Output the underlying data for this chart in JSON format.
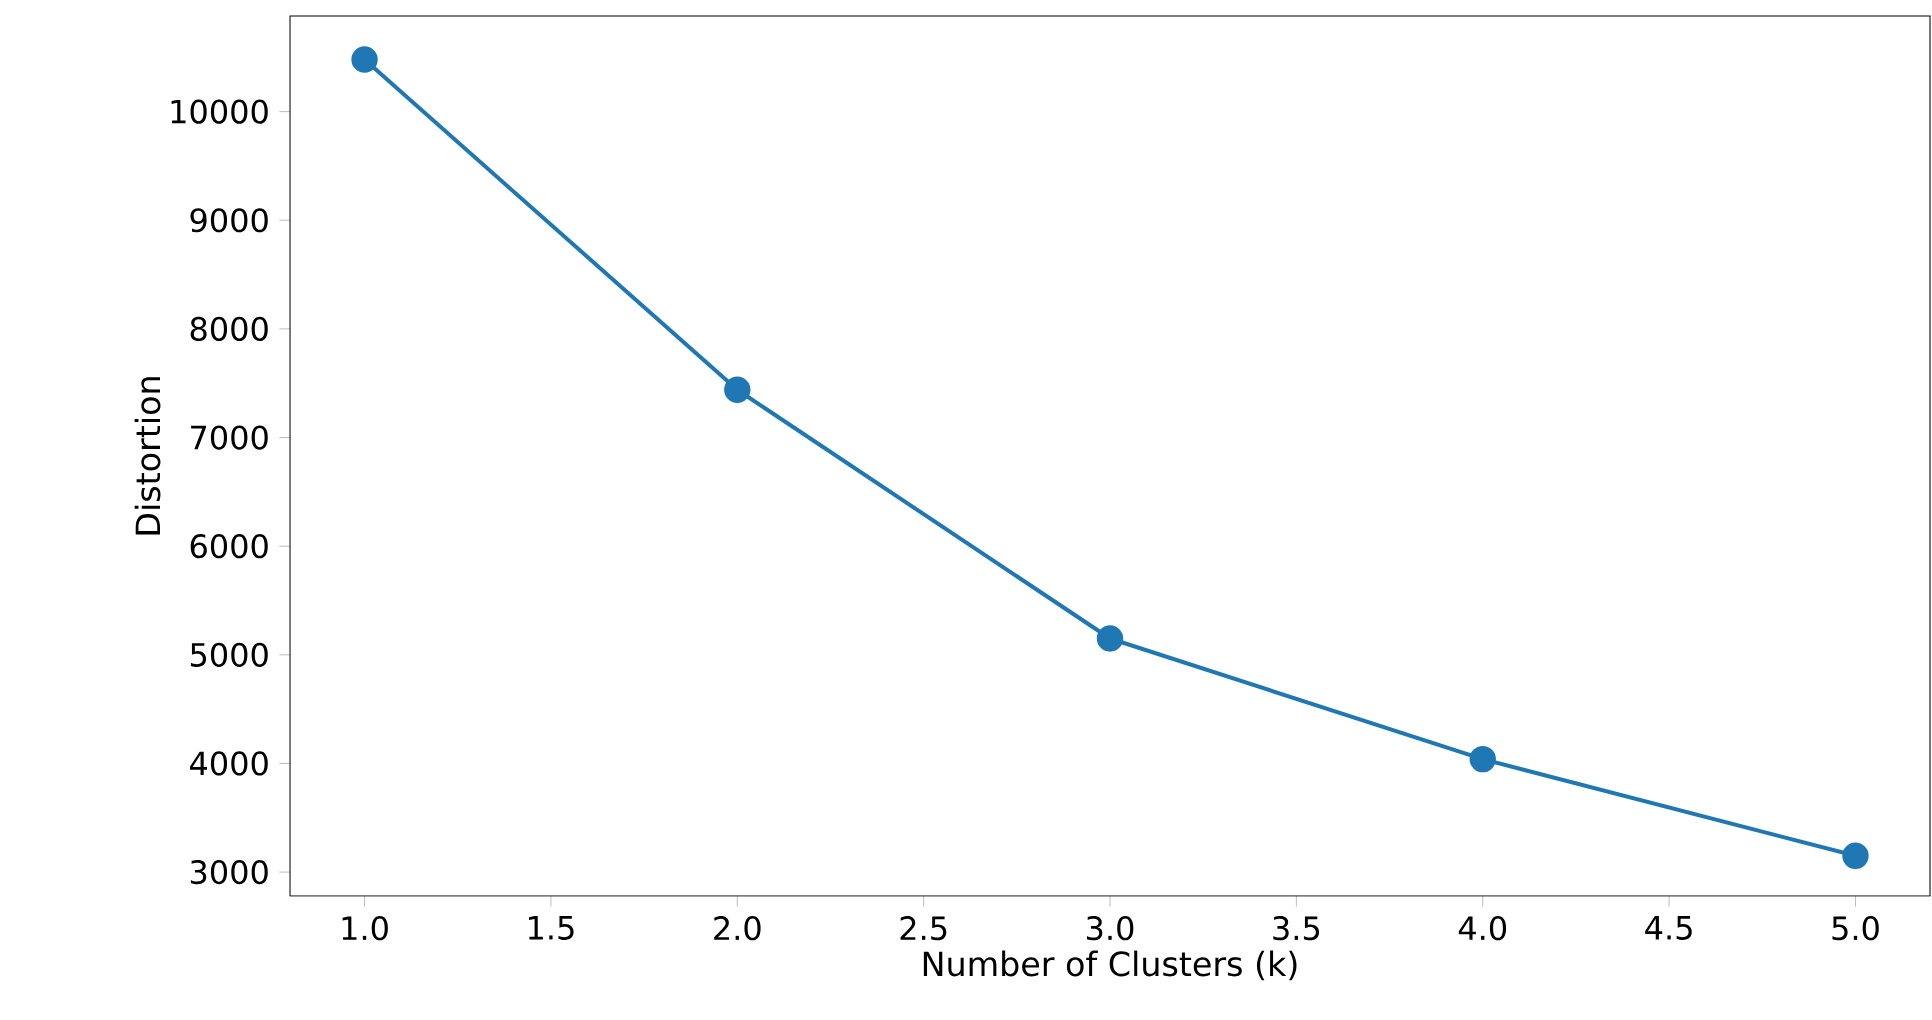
{
  "chart_data": {
    "type": "line",
    "xlabel": "Number of Clusters (k)",
    "ylabel": "Distortion",
    "x": [
      1,
      2,
      3,
      4,
      5
    ],
    "series": [
      {
        "color": "#1f77b4",
        "values": [
          10480,
          7440,
          5150,
          4040,
          3150
        ]
      }
    ],
    "xlim": [
      0.8,
      5.2
    ],
    "ylim": [
      2780,
      10880
    ],
    "xticks": [
      {
        "value": 1,
        "label": "1.0"
      },
      {
        "value": 1.5,
        "label": "1.5"
      },
      {
        "value": 2,
        "label": "2.0"
      },
      {
        "value": 2.5,
        "label": "2.5"
      },
      {
        "value": 3,
        "label": "3.0"
      },
      {
        "value": 3.5,
        "label": "3.5"
      },
      {
        "value": 4,
        "label": "4.0"
      },
      {
        "value": 4.5,
        "label": "4.5"
      },
      {
        "value": 5,
        "label": "5.0"
      }
    ],
    "yticks": [
      3000,
      4000,
      5000,
      6000,
      7000,
      8000,
      9000,
      10000
    ],
    "marker": "circle",
    "line_style": "solid"
  }
}
